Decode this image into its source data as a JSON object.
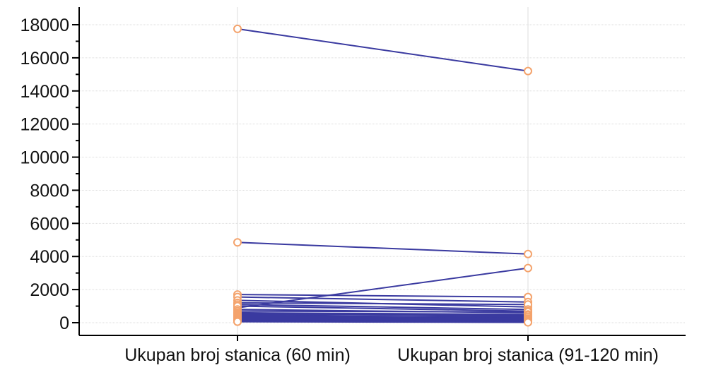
{
  "chart_data": {
    "type": "line",
    "subtype": "paired-dot",
    "title": "",
    "xlabel": "",
    "ylabel": "",
    "categories": [
      "Ukupan broj stanica (60 min)",
      "Ukupan broj stanica (91-120 min)"
    ],
    "yticks": [
      0,
      2000,
      4000,
      6000,
      8000,
      10000,
      12000,
      14000,
      16000,
      18000
    ],
    "ylim": [
      -500,
      18800
    ],
    "grid": true,
    "legend": "none",
    "colors": {
      "line": "#3a3aa0",
      "marker": "#f4a36c",
      "grid": "#dddddd",
      "axis": "#000000"
    },
    "pairs": [
      [
        17750,
        15200
      ],
      [
        4850,
        4150
      ],
      [
        900,
        3300
      ],
      [
        1700,
        1550
      ],
      [
        1550,
        1250
      ],
      [
        1350,
        950
      ],
      [
        1200,
        1100
      ],
      [
        1100,
        800
      ],
      [
        1000,
        700
      ],
      [
        800,
        600
      ],
      [
        700,
        650
      ],
      [
        600,
        500
      ],
      [
        550,
        400
      ],
      [
        500,
        450
      ],
      [
        450,
        300
      ],
      [
        400,
        350
      ],
      [
        350,
        250
      ],
      [
        300,
        200
      ],
      [
        250,
        150
      ],
      [
        200,
        100
      ],
      [
        150,
        80
      ],
      [
        120,
        60
      ],
      [
        100,
        40
      ],
      [
        80,
        30
      ],
      [
        60,
        20
      ]
    ]
  }
}
